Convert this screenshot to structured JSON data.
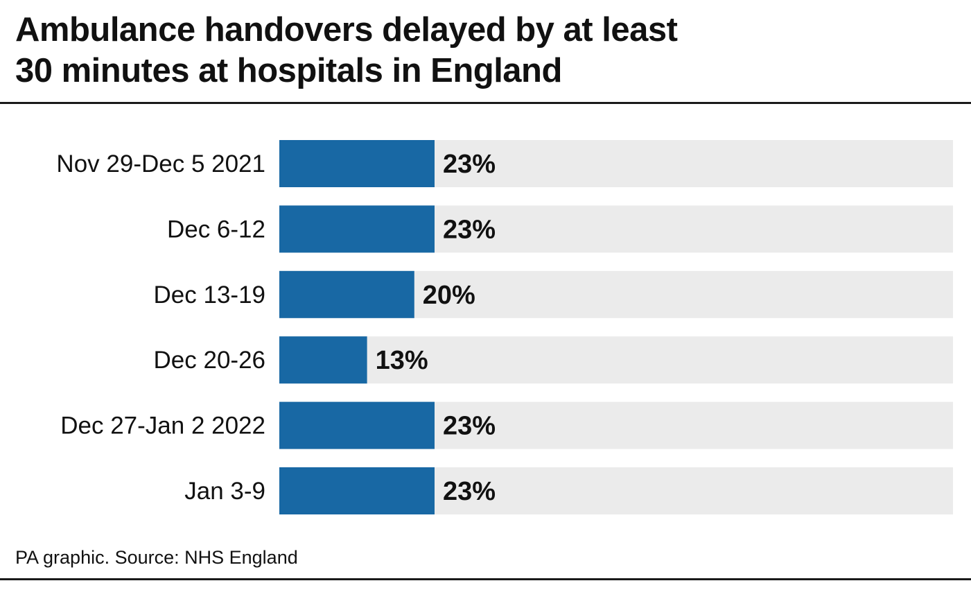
{
  "title_lines": [
    "Ambulance handovers delayed by at least",
    "30 minutes at hospitals in England"
  ],
  "source": "PA graphic. Source: NHS England",
  "colors": {
    "bar": "#1868a4",
    "track": "#ebebeb",
    "rule": "#1a1a1a"
  },
  "chart_data": {
    "type": "bar",
    "orientation": "horizontal",
    "title": "Ambulance handovers delayed by at least 30 minutes at hospitals in England",
    "xlabel": "",
    "ylabel": "",
    "xlim": [
      0,
      100
    ],
    "unit": "%",
    "grid": false,
    "categories": [
      "Nov 29-Dec 5 2021",
      "Dec 6-12",
      "Dec 13-19",
      "Dec 20-26",
      "Dec 27-Jan 2 2022",
      "Jan 3-9"
    ],
    "values": [
      23,
      23,
      20,
      13,
      23,
      23
    ],
    "value_labels": [
      "23%",
      "23%",
      "20%",
      "13%",
      "23%",
      "23%"
    ]
  }
}
